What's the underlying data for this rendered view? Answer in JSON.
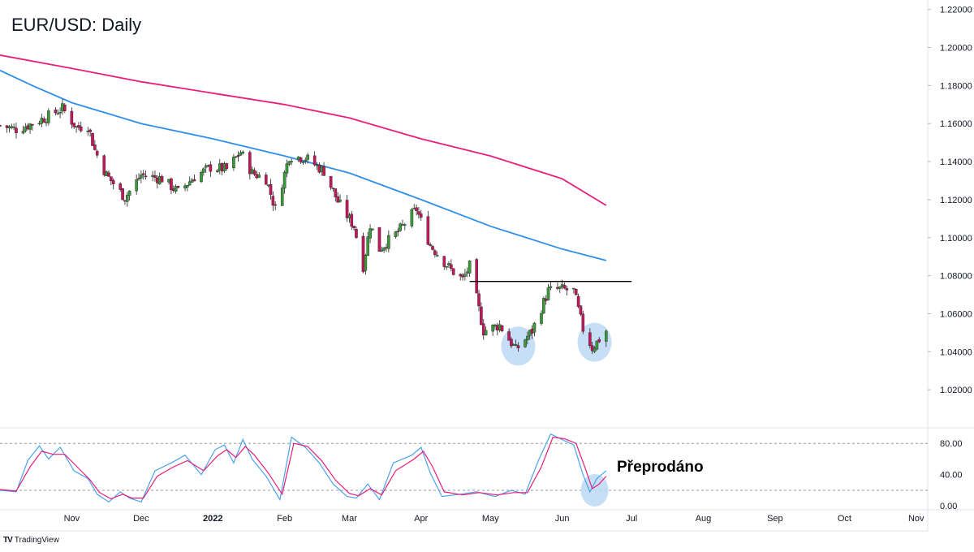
{
  "title": "EUR/USD: Daily",
  "branding": {
    "logo_mark": "TV",
    "logo_text": "TradingView"
  },
  "annotation_label": "Přeprodáno",
  "colors": {
    "bull": "#3a9a3a",
    "bear": "#c2185b",
    "ma_slow": "#e91e78",
    "ma_fast": "#2f8fe8",
    "stoch_k": "#4aa3f0",
    "stoch_d": "#e91e78",
    "circle_fill": "#bcd8f5",
    "grid": "#e0e3eb",
    "text": "#131722"
  },
  "chart_data": [
    {
      "type": "candlestick",
      "name": "price",
      "ylim": [
        1.0,
        1.225
      ],
      "y_ticks": [
        "1.02000",
        "1.04000",
        "1.06000",
        "1.08000",
        "1.10000",
        "1.12000",
        "1.14000",
        "1.16000",
        "1.18000",
        "1.20000",
        "1.22000"
      ],
      "x_range": [
        "2021-10-01",
        "2022-11-06"
      ],
      "x_ticks": [
        {
          "label": "Nov",
          "date": "2021-11-01",
          "bold": false
        },
        {
          "label": "Dec",
          "date": "2021-12-01",
          "bold": false
        },
        {
          "label": "2022",
          "date": "2022-01-01",
          "bold": true
        },
        {
          "label": "Feb",
          "date": "2022-02-01",
          "bold": false
        },
        {
          "label": "Mar",
          "date": "2022-03-01",
          "bold": false
        },
        {
          "label": "Apr",
          "date": "2022-04-01",
          "bold": false
        },
        {
          "label": "May",
          "date": "2022-05-01",
          "bold": false
        },
        {
          "label": "Jun",
          "date": "2022-06-01",
          "bold": false
        },
        {
          "label": "Jul",
          "date": "2022-07-01",
          "bold": false
        },
        {
          "label": "Aug",
          "date": "2022-08-01",
          "bold": false
        },
        {
          "label": "Sep",
          "date": "2022-09-01",
          "bold": false
        },
        {
          "label": "Oct",
          "date": "2022-10-01",
          "bold": false
        },
        {
          "label": "Nov",
          "date": "2022-11-01",
          "bold": false
        }
      ],
      "close_anchors": [
        [
          "2021-10-01",
          1.159
        ],
        [
          "2021-10-08",
          1.157
        ],
        [
          "2021-10-15",
          1.16
        ],
        [
          "2021-10-22",
          1.164
        ],
        [
          "2021-10-28",
          1.168
        ],
        [
          "2021-11-03",
          1.158
        ],
        [
          "2021-11-08",
          1.159
        ],
        [
          "2021-11-11",
          1.146
        ],
        [
          "2021-11-16",
          1.133
        ],
        [
          "2021-11-24",
          1.121
        ],
        [
          "2021-12-01",
          1.133
        ],
        [
          "2021-12-10",
          1.131
        ],
        [
          "2021-12-17",
          1.124
        ],
        [
          "2021-12-24",
          1.132
        ],
        [
          "2021-12-31",
          1.137
        ],
        [
          "2022-01-07",
          1.136
        ],
        [
          "2022-01-13",
          1.145
        ],
        [
          "2022-01-18",
          1.134
        ],
        [
          "2022-01-24",
          1.131
        ],
        [
          "2022-01-28",
          1.115
        ],
        [
          "2022-02-03",
          1.143
        ],
        [
          "2022-02-10",
          1.142
        ],
        [
          "2022-02-18",
          1.135
        ],
        [
          "2022-02-24",
          1.119
        ],
        [
          "2022-03-03",
          1.106
        ],
        [
          "2022-03-07",
          1.085
        ],
        [
          "2022-03-10",
          1.107
        ],
        [
          "2022-03-14",
          1.094
        ],
        [
          "2022-03-22",
          1.103
        ],
        [
          "2022-03-30",
          1.115
        ],
        [
          "2022-04-05",
          1.096
        ],
        [
          "2022-04-14",
          1.083
        ],
        [
          "2022-04-19",
          1.078
        ],
        [
          "2022-04-22",
          1.085
        ],
        [
          "2022-04-28",
          1.051
        ],
        [
          "2022-05-05",
          1.054
        ],
        [
          "2022-05-12",
          1.041
        ],
        [
          "2022-05-19",
          1.051
        ],
        [
          "2022-05-26",
          1.072
        ],
        [
          "2022-05-31",
          1.073
        ],
        [
          "2022-06-06",
          1.072
        ],
        [
          "2022-06-10",
          1.052
        ],
        [
          "2022-06-14",
          1.042
        ],
        [
          "2022-06-20",
          1.051
        ]
      ],
      "moving_averages": [
        {
          "name": "slow",
          "color_key": "ma_slow",
          "points": [
            [
              "2021-10-01",
              1.196
            ],
            [
              "2021-11-01",
              1.189
            ],
            [
              "2021-12-01",
              1.182
            ],
            [
              "2022-01-01",
              1.176
            ],
            [
              "2022-02-01",
              1.17
            ],
            [
              "2022-03-01",
              1.163
            ],
            [
              "2022-04-01",
              1.152
            ],
            [
              "2022-05-01",
              1.143
            ],
            [
              "2022-06-01",
              1.131
            ],
            [
              "2022-06-20",
              1.117
            ]
          ]
        },
        {
          "name": "fast",
          "color_key": "ma_fast",
          "points": [
            [
              "2021-10-01",
              1.188
            ],
            [
              "2021-10-15",
              1.18
            ],
            [
              "2021-11-01",
              1.171
            ],
            [
              "2021-12-01",
              1.16
            ],
            [
              "2022-01-01",
              1.152
            ],
            [
              "2022-02-01",
              1.143
            ],
            [
              "2022-03-01",
              1.134
            ],
            [
              "2022-04-01",
              1.12
            ],
            [
              "2022-05-01",
              1.106
            ],
            [
              "2022-06-01",
              1.094
            ],
            [
              "2022-06-20",
              1.088
            ]
          ]
        }
      ],
      "resistance_line": {
        "from": "2022-04-22",
        "to": "2022-07-01",
        "value": 1.077
      },
      "highlight_circles": [
        {
          "date": "2022-05-13",
          "value": 1.043
        },
        {
          "date": "2022-06-15",
          "value": 1.045
        }
      ]
    },
    {
      "type": "line",
      "name": "stochastic",
      "ylim": [
        -5,
        100
      ],
      "y_ticks": [
        "0.00",
        "40.00",
        "80.00"
      ],
      "reference_levels": [
        80,
        20
      ],
      "series": [
        {
          "color_key": "stoch_k",
          "points": [
            [
              "2021-10-01",
              20
            ],
            [
              "2021-10-08",
              18
            ],
            [
              "2021-10-13",
              58
            ],
            [
              "2021-10-18",
              77
            ],
            [
              "2021-10-22",
              60
            ],
            [
              "2021-10-27",
              75
            ],
            [
              "2021-11-02",
              45
            ],
            [
              "2021-11-08",
              35
            ],
            [
              "2021-11-12",
              15
            ],
            [
              "2021-11-17",
              5
            ],
            [
              "2021-11-22",
              18
            ],
            [
              "2021-11-26",
              10
            ],
            [
              "2021-12-01",
              5
            ],
            [
              "2021-12-07",
              45
            ],
            [
              "2021-12-14",
              55
            ],
            [
              "2021-12-20",
              65
            ],
            [
              "2021-12-27",
              40
            ],
            [
              "2022-01-02",
              72
            ],
            [
              "2022-01-06",
              78
            ],
            [
              "2022-01-10",
              55
            ],
            [
              "2022-01-14",
              85
            ],
            [
              "2022-01-18",
              60
            ],
            [
              "2022-01-24",
              38
            ],
            [
              "2022-01-30",
              8
            ],
            [
              "2022-02-04",
              88
            ],
            [
              "2022-02-10",
              75
            ],
            [
              "2022-02-16",
              55
            ],
            [
              "2022-02-22",
              28
            ],
            [
              "2022-02-28",
              12
            ],
            [
              "2022-03-04",
              10
            ],
            [
              "2022-03-09",
              28
            ],
            [
              "2022-03-14",
              8
            ],
            [
              "2022-03-20",
              55
            ],
            [
              "2022-03-28",
              65
            ],
            [
              "2022-04-01",
              75
            ],
            [
              "2022-04-05",
              42
            ],
            [
              "2022-04-10",
              12
            ],
            [
              "2022-04-18",
              15
            ],
            [
              "2022-04-25",
              18
            ],
            [
              "2022-05-03",
              12
            ],
            [
              "2022-05-10",
              20
            ],
            [
              "2022-05-16",
              15
            ],
            [
              "2022-05-22",
              60
            ],
            [
              "2022-05-27",
              92
            ],
            [
              "2022-06-01",
              85
            ],
            [
              "2022-06-06",
              78
            ],
            [
              "2022-06-10",
              40
            ],
            [
              "2022-06-13",
              18
            ],
            [
              "2022-06-16",
              35
            ],
            [
              "2022-06-20",
              45
            ]
          ]
        },
        {
          "color_key": "stoch_d",
          "points": [
            [
              "2021-10-01",
              21
            ],
            [
              "2021-10-08",
              19
            ],
            [
              "2021-10-14",
              50
            ],
            [
              "2021-10-19",
              70
            ],
            [
              "2021-10-24",
              66
            ],
            [
              "2021-10-29",
              66
            ],
            [
              "2021-11-04",
              48
            ],
            [
              "2021-11-09",
              33
            ],
            [
              "2021-11-13",
              17
            ],
            [
              "2021-11-18",
              9
            ],
            [
              "2021-11-23",
              15
            ],
            [
              "2021-11-27",
              10
            ],
            [
              "2021-12-02",
              10
            ],
            [
              "2021-12-08",
              38
            ],
            [
              "2021-12-15",
              50
            ],
            [
              "2021-12-21",
              58
            ],
            [
              "2021-12-28",
              45
            ],
            [
              "2022-01-03",
              64
            ],
            [
              "2022-01-07",
              72
            ],
            [
              "2022-01-11",
              62
            ],
            [
              "2022-01-15",
              76
            ],
            [
              "2022-01-19",
              65
            ],
            [
              "2022-01-25",
              42
            ],
            [
              "2022-01-31",
              15
            ],
            [
              "2022-02-05",
              80
            ],
            [
              "2022-02-11",
              76
            ],
            [
              "2022-02-17",
              58
            ],
            [
              "2022-02-23",
              33
            ],
            [
              "2022-03-01",
              16
            ],
            [
              "2022-03-05",
              13
            ],
            [
              "2022-03-10",
              22
            ],
            [
              "2022-03-15",
              14
            ],
            [
              "2022-03-21",
              45
            ],
            [
              "2022-03-29",
              60
            ],
            [
              "2022-04-02",
              70
            ],
            [
              "2022-04-06",
              50
            ],
            [
              "2022-04-11",
              18
            ],
            [
              "2022-04-19",
              14
            ],
            [
              "2022-04-26",
              17
            ],
            [
              "2022-05-04",
              14
            ],
            [
              "2022-05-11",
              17
            ],
            [
              "2022-05-17",
              17
            ],
            [
              "2022-05-23",
              50
            ],
            [
              "2022-05-28",
              88
            ],
            [
              "2022-06-02",
              86
            ],
            [
              "2022-06-07",
              80
            ],
            [
              "2022-06-11",
              48
            ],
            [
              "2022-06-14",
              22
            ],
            [
              "2022-06-17",
              28
            ],
            [
              "2022-06-20",
              38
            ]
          ]
        }
      ],
      "highlight_circles": [
        {
          "date": "2022-06-15",
          "value": 20
        }
      ]
    }
  ]
}
